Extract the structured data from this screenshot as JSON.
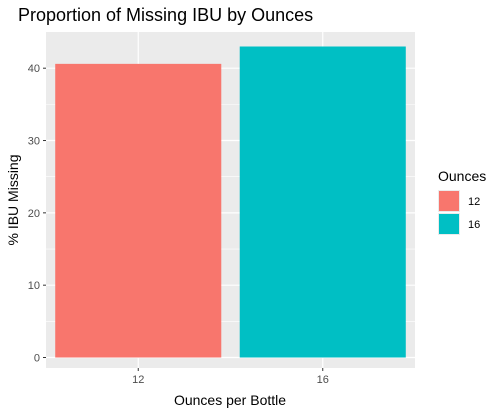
{
  "chart_data": {
    "type": "bar",
    "title": "Proportion of Missing IBU by Ounces",
    "xlabel": "Ounces per Bottle",
    "ylabel": "% IBU Missing",
    "categories": [
      "12",
      "16"
    ],
    "values": [
      40.6,
      43.0
    ],
    "colors": [
      "#F8766D",
      "#00BFC4"
    ],
    "ylim": [
      0,
      45
    ],
    "yticks": [
      0,
      10,
      20,
      30,
      40
    ],
    "grid": true,
    "panel_background": "#EBEBEB",
    "legend": {
      "title": "Ounces",
      "placement": "right",
      "entries": [
        {
          "label": "12",
          "color": "#F8766D"
        },
        {
          "label": "16",
          "color": "#00BFC4"
        }
      ]
    }
  }
}
